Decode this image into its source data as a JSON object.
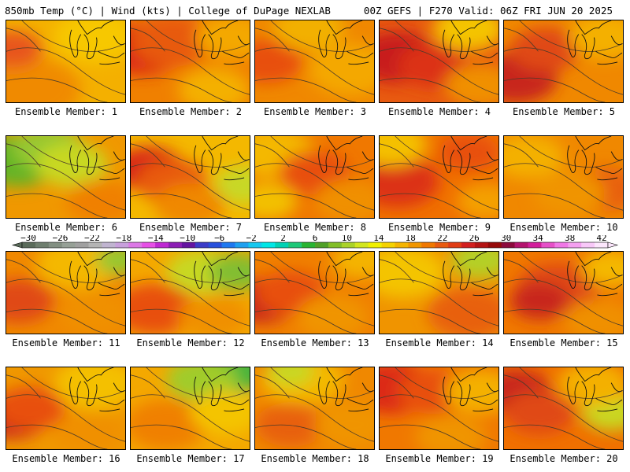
{
  "header": {
    "left": "850mb Temp (°C) | Wind (kts) | College of DuPage NEXLAB",
    "right": "00Z GEFS | F270 Valid: 06Z FRI JUN 20 2025"
  },
  "caption_prefix": "Ensemble Member: ",
  "members": [
    {
      "id": 1,
      "label": "Ensemble Member: 1",
      "base": "#f4b000",
      "blobs": [
        [
          "#f08a00",
          0.18,
          0.85,
          0.45
        ],
        [
          "#e8541c",
          0.05,
          0.35,
          0.25
        ],
        [
          "#f7c800",
          0.75,
          0.2,
          0.35
        ]
      ]
    },
    {
      "id": 2,
      "label": "Ensemble Member: 2",
      "base": "#f08000",
      "blobs": [
        [
          "#dc2a14",
          0.1,
          0.35,
          0.35
        ],
        [
          "#e85a10",
          0.35,
          0.25,
          0.35
        ],
        [
          "#f4a800",
          0.85,
          0.2,
          0.3
        ],
        [
          "#f4b000",
          0.7,
          0.85,
          0.3
        ]
      ]
    },
    {
      "id": 3,
      "label": "Ensemble Member: 3",
      "base": "#f08800",
      "blobs": [
        [
          "#e85010",
          0.1,
          0.5,
          0.3
        ],
        [
          "#f4a800",
          0.8,
          0.6,
          0.35
        ],
        [
          "#f2b000",
          0.45,
          0.1,
          0.3
        ]
      ]
    },
    {
      "id": 4,
      "label": "Ensemble Member: 4",
      "base": "#e85a10",
      "blobs": [
        [
          "#c81e1e",
          0.15,
          0.45,
          0.35
        ],
        [
          "#dc3018",
          0.45,
          0.55,
          0.3
        ],
        [
          "#f4c400",
          0.75,
          0.1,
          0.3
        ],
        [
          "#f09000",
          0.85,
          0.8,
          0.3
        ]
      ]
    },
    {
      "id": 5,
      "label": "Ensemble Member: 5",
      "base": "#f08800",
      "blobs": [
        [
          "#c8281e",
          0.1,
          0.7,
          0.35
        ],
        [
          "#e04a14",
          0.35,
          0.35,
          0.3
        ],
        [
          "#f4b000",
          0.85,
          0.2,
          0.3
        ]
      ]
    },
    {
      "id": 6,
      "label": "Ensemble Member: 6",
      "base": "#f09800",
      "blobs": [
        [
          "#64b428",
          0.1,
          0.3,
          0.35
        ],
        [
          "#96c832",
          0.35,
          0.15,
          0.3
        ],
        [
          "#c8d820",
          0.55,
          0.35,
          0.3
        ],
        [
          "#f08000",
          0.8,
          0.8,
          0.3
        ]
      ]
    },
    {
      "id": 7,
      "label": "Ensemble Member: 7",
      "base": "#f4b800",
      "blobs": [
        [
          "#d82818",
          0.15,
          0.4,
          0.3
        ],
        [
          "#e85a10",
          0.35,
          0.55,
          0.3
        ],
        [
          "#c8d828",
          0.95,
          0.6,
          0.25
        ],
        [
          "#f08800",
          0.5,
          0.85,
          0.3
        ]
      ]
    },
    {
      "id": 8,
      "label": "Ensemble Member: 8",
      "base": "#f07800",
      "blobs": [
        [
          "#f4b800",
          0.15,
          0.2,
          0.35
        ],
        [
          "#e85010",
          0.5,
          0.45,
          0.3
        ],
        [
          "#f2c000",
          0.1,
          0.8,
          0.25
        ],
        [
          "#f09000",
          0.8,
          0.8,
          0.3
        ]
      ]
    },
    {
      "id": 9,
      "label": "Ensemble Member: 9",
      "base": "#f07000",
      "blobs": [
        [
          "#dc3018",
          0.15,
          0.55,
          0.35
        ],
        [
          "#f4c000",
          0.1,
          0.1,
          0.3
        ],
        [
          "#e85010",
          0.75,
          0.2,
          0.25
        ],
        [
          "#f4a000",
          0.9,
          0.8,
          0.25
        ]
      ]
    },
    {
      "id": 10,
      "label": "Ensemble Member: 10",
      "base": "#f08800",
      "blobs": [
        [
          "#f4b000",
          0.2,
          0.25,
          0.3
        ],
        [
          "#e86010",
          0.85,
          0.65,
          0.3
        ],
        [
          "#f09400",
          0.55,
          0.7,
          0.3
        ]
      ]
    },
    {
      "id": 11,
      "label": "Ensemble Member: 11",
      "base": "#f08800",
      "blobs": [
        [
          "#e04a14",
          0.1,
          0.6,
          0.3
        ],
        [
          "#f4b800",
          0.6,
          0.15,
          0.35
        ],
        [
          "#96c832",
          0.95,
          0.1,
          0.2
        ],
        [
          "#f09000",
          0.75,
          0.75,
          0.3
        ]
      ]
    },
    {
      "id": 12,
      "label": "Ensemble Member: 12",
      "base": "#f4a800",
      "blobs": [
        [
          "#e85010",
          0.2,
          0.7,
          0.35
        ],
        [
          "#c8d820",
          0.6,
          0.25,
          0.3
        ],
        [
          "#82be32",
          0.9,
          0.25,
          0.25
        ],
        [
          "#f09000",
          0.7,
          0.8,
          0.3
        ]
      ]
    },
    {
      "id": 13,
      "label": "Ensemble Member: 13",
      "base": "#f08000",
      "blobs": [
        [
          "#c8281e",
          0.05,
          0.6,
          0.3
        ],
        [
          "#e85010",
          0.3,
          0.5,
          0.3
        ],
        [
          "#f4b400",
          0.9,
          0.1,
          0.25
        ],
        [
          "#f09400",
          0.65,
          0.8,
          0.3
        ]
      ]
    },
    {
      "id": 14,
      "label": "Ensemble Member: 14",
      "base": "#f09400",
      "blobs": [
        [
          "#f4c400",
          0.2,
          0.25,
          0.35
        ],
        [
          "#e86010",
          0.75,
          0.75,
          0.35
        ],
        [
          "#b4d028",
          0.85,
          0.1,
          0.25
        ]
      ]
    },
    {
      "id": 15,
      "label": "Ensemble Member: 15",
      "base": "#f07800",
      "blobs": [
        [
          "#e04a14",
          0.45,
          0.45,
          0.35
        ],
        [
          "#c8281e",
          0.3,
          0.6,
          0.25
        ],
        [
          "#f4b800",
          0.9,
          0.2,
          0.25
        ],
        [
          "#f09000",
          0.8,
          0.85,
          0.3
        ]
      ]
    },
    {
      "id": 16,
      "label": "Ensemble Member: 16",
      "base": "#f09800",
      "blobs": [
        [
          "#c8281e",
          0.05,
          0.6,
          0.3
        ],
        [
          "#e85010",
          0.2,
          0.5,
          0.3
        ],
        [
          "#f4c000",
          0.75,
          0.2,
          0.35
        ],
        [
          "#f09000",
          0.7,
          0.8,
          0.3
        ]
      ]
    },
    {
      "id": 17,
      "label": "Ensemble Member: 17",
      "base": "#f4a800",
      "blobs": [
        [
          "#46b43c",
          0.85,
          0.05,
          0.3
        ],
        [
          "#a0cc2c",
          0.6,
          0.15,
          0.3
        ],
        [
          "#f08000",
          0.3,
          0.7,
          0.35
        ],
        [
          "#f4c400",
          0.8,
          0.55,
          0.3
        ]
      ]
    },
    {
      "id": 18,
      "label": "Ensemble Member: 18",
      "base": "#f08800",
      "blobs": [
        [
          "#f4b800",
          0.4,
          0.15,
          0.35
        ],
        [
          "#c8d820",
          0.3,
          0.05,
          0.2
        ],
        [
          "#e86010",
          0.3,
          0.7,
          0.3
        ],
        [
          "#f09400",
          0.8,
          0.7,
          0.3
        ]
      ]
    },
    {
      "id": 19,
      "label": "Ensemble Member: 19",
      "base": "#f07800",
      "blobs": [
        [
          "#dc2a14",
          0.1,
          0.25,
          0.35
        ],
        [
          "#e85010",
          0.45,
          0.3,
          0.3
        ],
        [
          "#f4b000",
          0.85,
          0.3,
          0.3
        ],
        [
          "#f09400",
          0.6,
          0.85,
          0.3
        ]
      ]
    },
    {
      "id": 20,
      "label": "Ensemble Member: 20",
      "base": "#f07000",
      "blobs": [
        [
          "#c8281e",
          0.1,
          0.3,
          0.3
        ],
        [
          "#e04a14",
          0.3,
          0.55,
          0.3
        ],
        [
          "#c8d820",
          0.9,
          0.55,
          0.25
        ],
        [
          "#f4b000",
          0.75,
          0.2,
          0.3
        ]
      ]
    }
  ],
  "colorbar": {
    "labels": [
      "−30",
      "−26",
      "−22",
      "−18",
      "−14",
      "−10",
      "−6",
      "−2",
      "2",
      "6",
      "10",
      "14",
      "18",
      "22",
      "26",
      "30",
      "34",
      "38",
      "42"
    ],
    "colors": [
      "#5a6b5a",
      "#6e7e6e",
      "#828f82",
      "#96a096",
      "#a0a0a0",
      "#b4b4b4",
      "#c0b4d0",
      "#c8a0dc",
      "#dc78e6",
      "#e650e6",
      "#be28d2",
      "#8c1eb4",
      "#6414a0",
      "#3c3cc8",
      "#2850dc",
      "#1e78f0",
      "#1ea0f0",
      "#14c8f0",
      "#00e6e6",
      "#00d2b4",
      "#1ec878",
      "#28b432",
      "#50a028",
      "#82be28",
      "#aad228",
      "#d2e61e",
      "#f0f000",
      "#f4d200",
      "#f4b400",
      "#f09600",
      "#f07800",
      "#e85a10",
      "#e03c14",
      "#d21e1e",
      "#b41414",
      "#960a0a",
      "#8c0a3c",
      "#b4146e",
      "#d21e9b",
      "#e650c8",
      "#f078e6",
      "#f4a0f0",
      "#f8c8f8",
      "#fce6fc"
    ]
  }
}
